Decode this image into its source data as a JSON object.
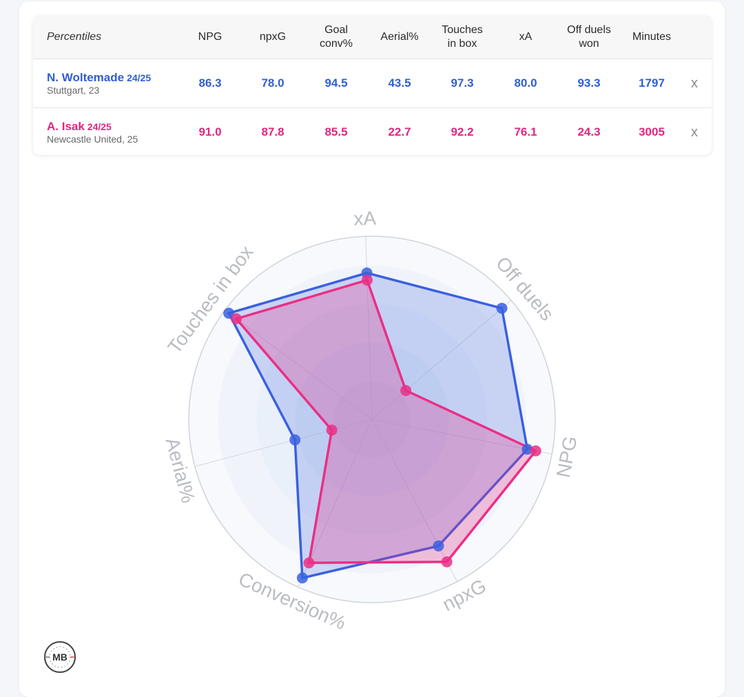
{
  "table": {
    "headers": [
      "Percentiles",
      "NPG",
      "npxG",
      "Goal\nconv%",
      "Aerial%",
      "Touches\nin box",
      "xA",
      "Off duels\nwon",
      "Minutes"
    ],
    "close_label": "x",
    "players": [
      {
        "name": "N. Woltemade",
        "season": "24/25",
        "club": "Stuttgart, 23",
        "values": [
          "86.3",
          "78.0",
          "94.5",
          "43.5",
          "97.3",
          "80.0",
          "93.3",
          "1797"
        ]
      },
      {
        "name": "A. Isak",
        "season": "24/25",
        "club": "Newcastle United, 25",
        "values": [
          "91.0",
          "87.8",
          "85.5",
          "22.7",
          "92.2",
          "76.1",
          "24.3",
          "3005"
        ]
      }
    ]
  },
  "logo_text": "MB",
  "chart_data": {
    "type": "radar",
    "axes": [
      "xA",
      "Off duels",
      "NPG",
      "npxG",
      "Conversion%",
      "Aerial%",
      "Touches in box"
    ],
    "range": [
      0,
      100
    ],
    "series": [
      {
        "name": "N. Woltemade",
        "color": "#3a60e0",
        "values": [
          80.0,
          93.3,
          86.3,
          78.0,
          94.5,
          43.5,
          97.3
        ]
      },
      {
        "name": "A. Isak",
        "color": "#ea2f86",
        "values": [
          76.1,
          24.3,
          91.0,
          87.8,
          85.5,
          22.7,
          92.2
        ]
      }
    ]
  }
}
